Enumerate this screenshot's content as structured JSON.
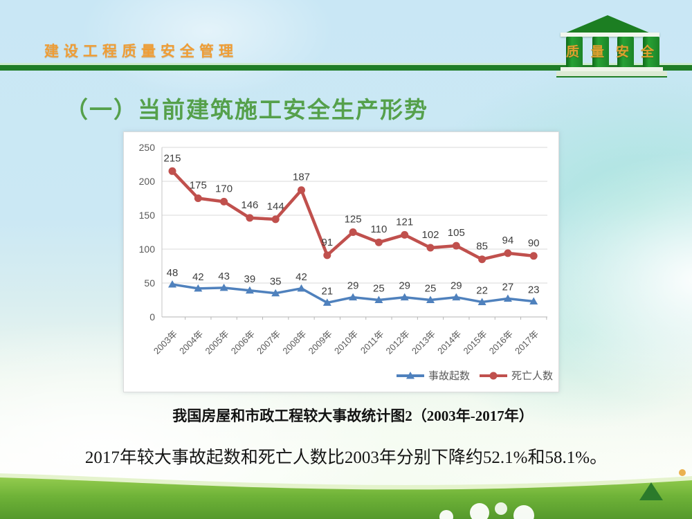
{
  "header": {
    "brand": "建设工程质量安全管理",
    "logo_text": "质量安全"
  },
  "title": "（一）当前建筑施工安全生产形势",
  "chart_data": {
    "type": "line",
    "title": "",
    "xlabel": "",
    "ylabel": "",
    "categories": [
      "2003年",
      "2004年",
      "2005年",
      "2006年",
      "2007年",
      "2008年",
      "2009年",
      "2010年",
      "2011年",
      "2012年",
      "2013年",
      "2014年",
      "2015年",
      "2016年",
      "2017年"
    ],
    "series": [
      {
        "name": "事故起数",
        "marker": "triangle",
        "color": "#4f81bd",
        "values": [
          48,
          42,
          43,
          39,
          35,
          42,
          21,
          29,
          25,
          29,
          25,
          29,
          22,
          27,
          23
        ]
      },
      {
        "name": "死亡人数",
        "marker": "circle",
        "color": "#c0504d",
        "values": [
          215,
          175,
          170,
          146,
          144,
          187,
          91,
          125,
          110,
          121,
          102,
          105,
          85,
          94,
          90
        ]
      }
    ],
    "ylim": [
      0,
      250
    ],
    "yticks": [
      0,
      50,
      100,
      150,
      200,
      250
    ],
    "grid": true,
    "legend_position": "bottom-right",
    "data_labels": true
  },
  "caption": "我国房屋和市政工程较大事故统计图2（2003年-2017年）",
  "summary": "2017年较大事故起数和死亡人数比2003年分别下降约52.1%和58.1%。",
  "colors": {
    "brand_text": "#ef9d35",
    "divider_green": "#1f7d26",
    "title_green": "#55a04b",
    "series_accidents": "#4f81bd",
    "series_deaths": "#c0504d",
    "logo_green": "#1c8427",
    "logo_text_gold": "#dfa02f",
    "grass_green": "#76b83c",
    "nav_triangle": "#2b7a2b"
  }
}
